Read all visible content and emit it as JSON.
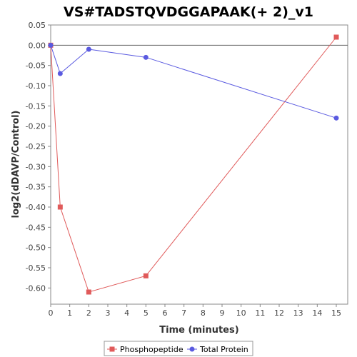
{
  "chart_data": {
    "type": "line",
    "title": "VS#TADSTQVDGGAPAAK(+ 2)_v1",
    "xlabel": "Time (minutes)",
    "ylabel": "log2(dDAVP/Control)",
    "xlim": [
      0,
      15.6
    ],
    "ylim": [
      -0.64,
      0.05
    ],
    "x_ticks": [
      0,
      1,
      2,
      3,
      4,
      5,
      6,
      7,
      8,
      9,
      10,
      11,
      12,
      13,
      14,
      15
    ],
    "y_ticks": [
      0.05,
      0.0,
      -0.05,
      -0.1,
      -0.15,
      -0.2,
      -0.25,
      -0.3,
      -0.35,
      -0.4,
      -0.45,
      -0.5,
      -0.55,
      -0.6
    ],
    "y_tick_labels": [
      "0.05",
      "0.00",
      "-0.05",
      "-0.10",
      "-0.15",
      "-0.20",
      "-0.25",
      "-0.30",
      "-0.35",
      "-0.40",
      "-0.45",
      "-0.50",
      "-0.55",
      "-0.60"
    ],
    "zero_line": true,
    "grid": false,
    "legend_position": "bottom",
    "series": [
      {
        "name": "Phosphopeptide",
        "color": "#e05a5a",
        "marker": "square",
        "x": [
          0,
          0.5,
          2,
          5,
          15
        ],
        "y": [
          0.0,
          -0.4,
          -0.61,
          -0.57,
          0.02
        ]
      },
      {
        "name": "Total Protein",
        "color": "#5a5ae0",
        "marker": "circle",
        "x": [
          0,
          0.5,
          2,
          5,
          15
        ],
        "y": [
          0.0,
          -0.07,
          -0.01,
          -0.03,
          -0.18
        ]
      }
    ]
  }
}
